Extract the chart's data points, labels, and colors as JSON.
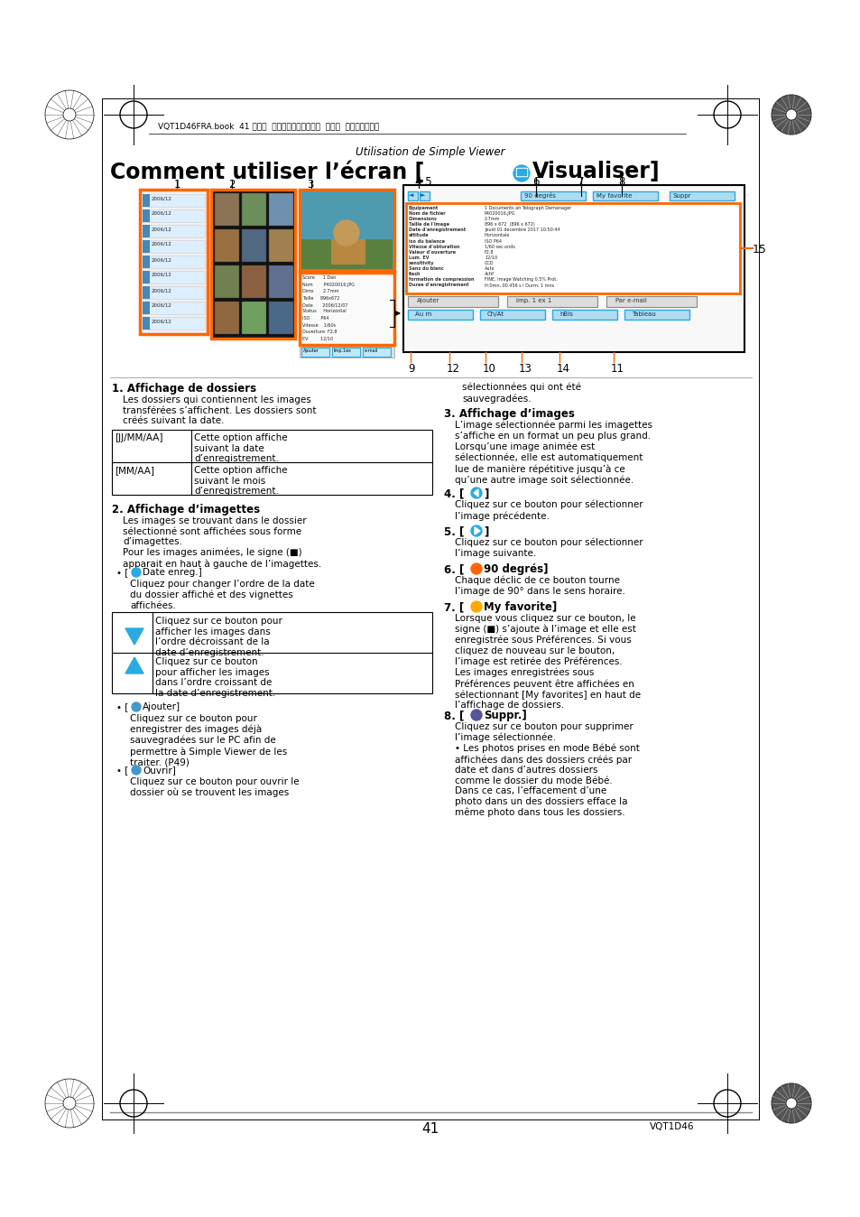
{
  "bg_color": "#ffffff",
  "page_width": 9.54,
  "page_height": 13.48,
  "header_text": "VQT1D46FRA.book  41 ページ  ２００６年１２月７日  木曜日  午後３晎５２分",
  "subtitle": "Utilisation de Simple Viewer",
  "title_part1": "Comment utiliser l’écran [",
  "title_part2": "Visualiser]",
  "section1_title": "1. Affichage de dossiers",
  "section1_body": "Les dossiers qui contiennent les images\ntransférées s’affichent. Les dossiers sont\ncréés suivant la date.",
  "table1_rows": [
    [
      "[JJ/MM/AA]",
      "Cette option affiche\nsuivant la date\nd’enregistrement."
    ],
    [
      "[MM/AA]",
      "Cette option affiche\nsuivant le mois\nd’enregistrement."
    ]
  ],
  "section2_title": "2. Affichage d’imagettes",
  "section2_body": "Les images se trouvant dans le dossier\nsélectionné sont affichées sous forme\nd’imagettes.\nPour les images animées, le signe (■)\napparait en haut à gauche de l’imagettes.",
  "section2_bullet1_title": "[ ■Date enreg.]",
  "section2_bullet1_body": "Cliquez pour changer l’ordre de la date\ndu dossier affiché et des vignettes\naffichées.",
  "table2_row1_desc": "Cliquez sur ce bouton pour\nafficher les images dans\nl’ordre décroissant de la\ndate d’enregistrement.",
  "table2_row2_desc": "Cliquez sur ce bouton\npour afficher les images\ndans l’ordre croissant de\nla date d’enregistrement.",
  "section2_bullet2_title": "[ ■Ajouter]",
  "section2_bullet2_body": "Cliquez sur ce bouton pour\nenregistrer des images déjà\nsauvegradées sur le PC afin de\npermettre à Simple Viewer de les\ntraiter. (P49)",
  "section2_bullet3_title": "[ ■Ouvrir]",
  "section2_bullet3_body": "Cliquez sur ce bouton pour ouvrir le\ndossier où se trouvent les images",
  "section2_bullet3_body2": "sélectionnées qui ont été\nsauvegradées.",
  "section3_title": "3. Affichage d’images",
  "section3_body": "L’image sélectionnée parmi les imagettes\ns’affiche en un format un peu plus grand.\nLorsqu’une image animée est\nsélectionnée, elle est automatiquement\nlue de manière répétitive jusqu’à ce\nqu’une autre image soit sélectionnée.",
  "section4_title": "4. [◄ ]",
  "section4_body": "Cliquez sur ce bouton pour sélectionner\nl’image précédente.",
  "section5_title": "5. [► ]",
  "section5_body": "Cliquez sur ce bouton pour sélectionner\nl’image suivante.",
  "section6_title": "6. [■90 degrés]",
  "section6_body": "Chaque déclic de ce bouton tourne\nl’image de 90° dans le sens horaire.",
  "section7_title": "7. [■My favorite]",
  "section7_body": "Lorsque vous cliquez sur ce bouton, le\nsigne (■) s’ajoute à l’image et elle est\nenregistrée sous Préférences. Si vous\ncliquez de nouveau sur le bouton,\nl’image est retirée des Préférences.\nLes images enregistrées sous\nPréférences peuvent être affichées en\nsélectionnant [My favorites] en haut de\nl’affichage de dossiers.",
  "section8_title": "8. [■Suppr.]",
  "section8_body": "Cliquez sur ce bouton pour supprimer\nl’image sélectionnée.\n• Les photos prises en mode Bébé sont\naffichées dans des dossiers créés par\ndate et dans d’autres dossiers\ncomme le dossier du mode Bébé.\nDans ce cas, l’effacement d’une\nphoto dans un des dossiers efface la\nmême photo dans tous les dossiers.",
  "page_number": "41",
  "page_code": "VQT1D46",
  "orange_color": "#FF6600",
  "cyan_color": "#29ABE2",
  "black_color": "#000000",
  "gray_color": "#888888",
  "line_gray": "#999999",
  "info_lines": [
    [
      "Equipement",
      "1 Documents an Telograph Demanager"
    ],
    [
      "Nom de fichier",
      "P4020016.JPG"
    ],
    [
      "Dimensions",
      "2.7mm"
    ],
    [
      "Taille de l'image",
      "896 x 672  (896 x 672)"
    ],
    [
      "Date d'enregistrement",
      "Jeudi 01 decembre 2017 10:50:44"
    ],
    [
      "attitude",
      "Horizontale"
    ],
    [
      "iso du balance",
      "ISO P64"
    ],
    [
      "Vitesse d'obturation",
      "1/60 sec.onds"
    ],
    [
      "Valeur d'ouverture",
      "F2.8"
    ],
    [
      "Lum. EV",
      "12/10"
    ],
    [
      "sensitivity",
      "CCD"
    ],
    [
      "Sens du blanc",
      "Auto"
    ],
    [
      "flash",
      "Actif"
    ],
    [
      "formation de compression",
      "FINE, Image Watching 0.5% Prot."
    ],
    [
      "Duree d'enregistrement",
      "H:0mn, 00.456 s I Durm: 1 mns"
    ]
  ]
}
